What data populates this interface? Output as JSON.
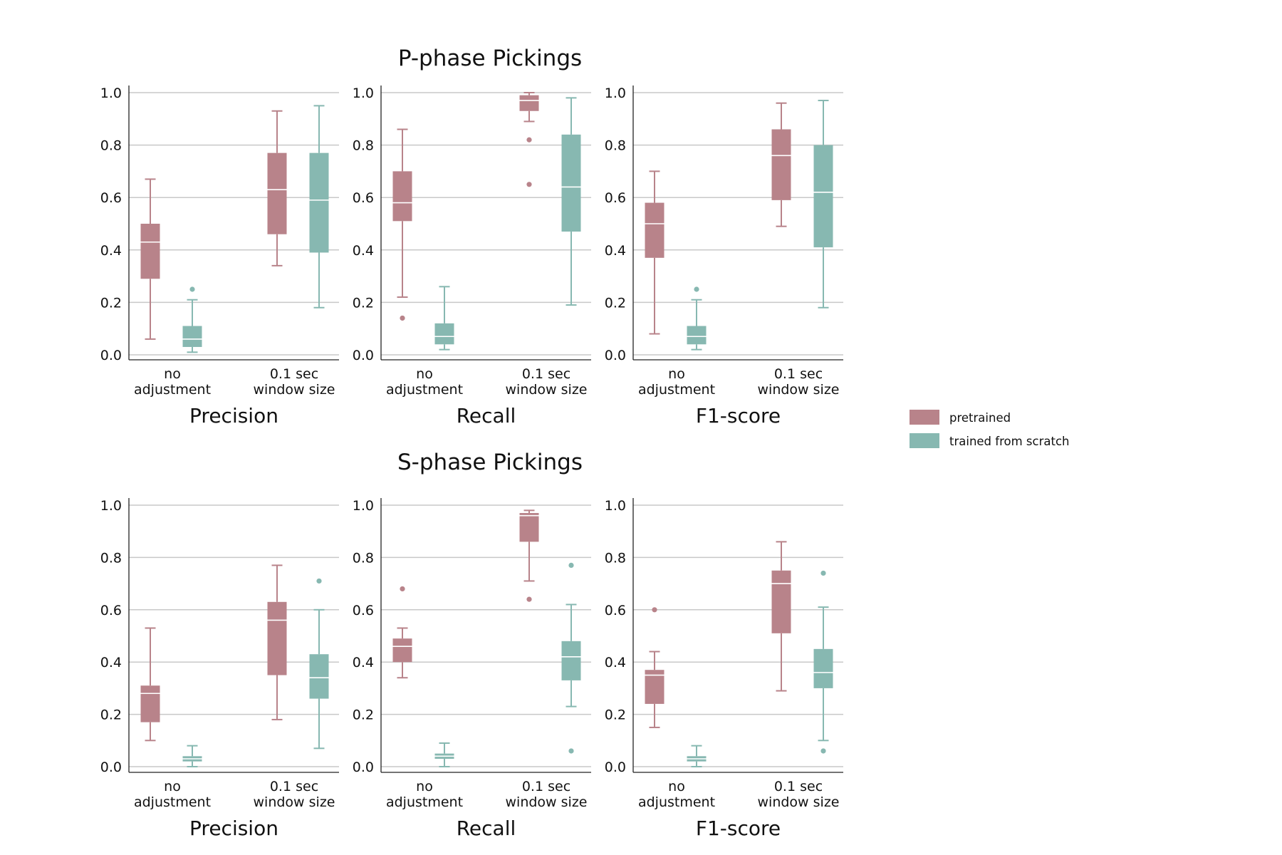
{
  "colors": {
    "pretrained": "#b8838a",
    "trained_from_scratch": "#87b8b1",
    "median": "#ffffff",
    "grid": "#c8c8c8"
  },
  "chart_data": {
    "type": "box",
    "yticks": [
      "0.0",
      "0.2",
      "0.4",
      "0.6",
      "0.8",
      "1.0"
    ],
    "ylim": [
      -0.02,
      1.02
    ],
    "grid": "horizontal",
    "categories": [
      [
        "no",
        "adjustment"
      ],
      [
        "0.1 sec",
        "window size"
      ]
    ],
    "legend": {
      "placement": "right",
      "entries": [
        {
          "label": "pretrained",
          "color_key": "pretrained"
        },
        {
          "label": "trained from scratch",
          "color_key": "trained_from_scratch"
        }
      ]
    },
    "sections": [
      {
        "title": "P-phase Pickings",
        "panels": [
          {
            "metric": "Precision",
            "groups": [
              {
                "category": "no adjustment",
                "pretrained": {
                  "low": 0.06,
                  "q1": 0.29,
                  "median": 0.43,
                  "q3": 0.5,
                  "high": 0.67,
                  "outliers": []
                },
                "trained_from_scratch": {
                  "low": 0.01,
                  "q1": 0.03,
                  "median": 0.06,
                  "q3": 0.11,
                  "high": 0.21,
                  "outliers": [
                    0.25
                  ]
                }
              },
              {
                "category": "0.1 sec window size",
                "pretrained": {
                  "low": 0.34,
                  "q1": 0.46,
                  "median": 0.63,
                  "q3": 0.77,
                  "high": 0.93,
                  "outliers": []
                },
                "trained_from_scratch": {
                  "low": 0.18,
                  "q1": 0.39,
                  "median": 0.59,
                  "q3": 0.77,
                  "high": 0.95,
                  "outliers": []
                }
              }
            ]
          },
          {
            "metric": "Recall",
            "groups": [
              {
                "category": "no adjustment",
                "pretrained": {
                  "low": 0.22,
                  "q1": 0.51,
                  "median": 0.58,
                  "q3": 0.7,
                  "high": 0.86,
                  "outliers": [
                    0.14
                  ]
                },
                "trained_from_scratch": {
                  "low": 0.02,
                  "q1": 0.04,
                  "median": 0.07,
                  "q3": 0.12,
                  "high": 0.26,
                  "outliers": []
                }
              },
              {
                "category": "0.1 sec window size",
                "pretrained": {
                  "low": 0.89,
                  "q1": 0.93,
                  "median": 0.97,
                  "q3": 0.99,
                  "high": 1.0,
                  "outliers": [
                    0.82,
                    0.65
                  ]
                },
                "trained_from_scratch": {
                  "low": 0.19,
                  "q1": 0.47,
                  "median": 0.64,
                  "q3": 0.84,
                  "high": 0.98,
                  "outliers": []
                }
              }
            ]
          },
          {
            "metric": "F1-score",
            "groups": [
              {
                "category": "no adjustment",
                "pretrained": {
                  "low": 0.08,
                  "q1": 0.37,
                  "median": 0.5,
                  "q3": 0.58,
                  "high": 0.7,
                  "outliers": []
                },
                "trained_from_scratch": {
                  "low": 0.02,
                  "q1": 0.04,
                  "median": 0.07,
                  "q3": 0.11,
                  "high": 0.21,
                  "outliers": [
                    0.25
                  ]
                }
              },
              {
                "category": "0.1 sec window size",
                "pretrained": {
                  "low": 0.49,
                  "q1": 0.59,
                  "median": 0.76,
                  "q3": 0.86,
                  "high": 0.96,
                  "outliers": []
                },
                "trained_from_scratch": {
                  "low": 0.18,
                  "q1": 0.41,
                  "median": 0.62,
                  "q3": 0.8,
                  "high": 0.97,
                  "outliers": []
                }
              }
            ]
          }
        ]
      },
      {
        "title": "S-phase Pickings",
        "panels": [
          {
            "metric": "Precision",
            "groups": [
              {
                "category": "no adjustment",
                "pretrained": {
                  "low": 0.1,
                  "q1": 0.17,
                  "median": 0.28,
                  "q3": 0.31,
                  "high": 0.53,
                  "outliers": []
                },
                "trained_from_scratch": {
                  "low": 0.0,
                  "q1": 0.02,
                  "median": 0.03,
                  "q3": 0.04,
                  "high": 0.08,
                  "outliers": []
                }
              },
              {
                "category": "0.1 sec window size",
                "pretrained": {
                  "low": 0.18,
                  "q1": 0.35,
                  "median": 0.56,
                  "q3": 0.63,
                  "high": 0.77,
                  "outliers": []
                },
                "trained_from_scratch": {
                  "low": 0.07,
                  "q1": 0.26,
                  "median": 0.34,
                  "q3": 0.43,
                  "high": 0.6,
                  "outliers": [
                    0.71
                  ]
                }
              }
            ]
          },
          {
            "metric": "Recall",
            "groups": [
              {
                "category": "no adjustment",
                "pretrained": {
                  "low": 0.34,
                  "q1": 0.4,
                  "median": 0.46,
                  "q3": 0.49,
                  "high": 0.53,
                  "outliers": [
                    0.68
                  ]
                },
                "trained_from_scratch": {
                  "low": 0.0,
                  "q1": 0.03,
                  "median": 0.04,
                  "q3": 0.05,
                  "high": 0.09,
                  "outliers": []
                }
              },
              {
                "category": "0.1 sec window size",
                "pretrained": {
                  "low": 0.71,
                  "q1": 0.86,
                  "median": 0.96,
                  "q3": 0.97,
                  "high": 0.98,
                  "outliers": [
                    0.64
                  ]
                },
                "trained_from_scratch": {
                  "low": 0.23,
                  "q1": 0.33,
                  "median": 0.42,
                  "q3": 0.48,
                  "high": 0.62,
                  "outliers": [
                    0.77,
                    0.06
                  ]
                }
              }
            ]
          },
          {
            "metric": "F1-score",
            "groups": [
              {
                "category": "no adjustment",
                "pretrained": {
                  "low": 0.15,
                  "q1": 0.24,
                  "median": 0.35,
                  "q3": 0.37,
                  "high": 0.44,
                  "outliers": [
                    0.6
                  ]
                },
                "trained_from_scratch": {
                  "low": 0.0,
                  "q1": 0.02,
                  "median": 0.03,
                  "q3": 0.04,
                  "high": 0.08,
                  "outliers": []
                }
              },
              {
                "category": "0.1 sec window size",
                "pretrained": {
                  "low": 0.29,
                  "q1": 0.51,
                  "median": 0.7,
                  "q3": 0.75,
                  "high": 0.86,
                  "outliers": []
                },
                "trained_from_scratch": {
                  "low": 0.1,
                  "q1": 0.3,
                  "median": 0.36,
                  "q3": 0.45,
                  "high": 0.61,
                  "outliers": [
                    0.74,
                    0.06
                  ]
                }
              }
            ]
          }
        ]
      }
    ]
  }
}
